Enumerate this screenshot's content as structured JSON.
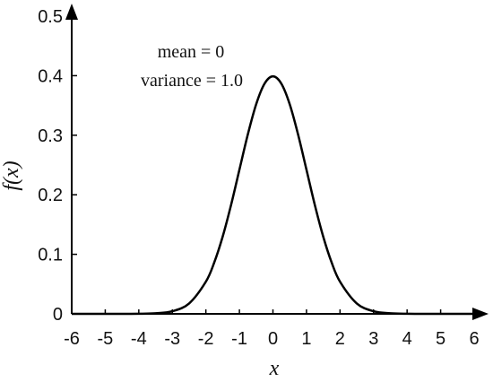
{
  "chart_data": {
    "type": "line",
    "title": "",
    "xlabel": "x",
    "ylabel": "f(x)",
    "xlim": [
      -6,
      6
    ],
    "ylim": [
      0,
      0.5
    ],
    "x_ticks": [
      -6,
      -5,
      -4,
      -3,
      -2,
      -1,
      0,
      1,
      2,
      3,
      4,
      5,
      6
    ],
    "y_ticks": [
      0,
      0.1,
      0.2,
      0.3,
      0.4,
      0.5
    ],
    "x_tick_labels": [
      "-6",
      "-5",
      "-4",
      "-3",
      "-2",
      "-1",
      "0",
      "1",
      "2",
      "3",
      "4",
      "5",
      "6"
    ],
    "y_tick_labels": [
      "0",
      "0.1",
      "0.2",
      "0.3",
      "0.4",
      "0.5"
    ],
    "grid": false,
    "annotations": [
      "mean = 0",
      "variance  = 1.0"
    ],
    "series": [
      {
        "color": "#000000",
        "x": [
          -6,
          -5.5,
          -5,
          -4.5,
          -4,
          -3.5,
          -3,
          -2.5,
          -2,
          -1.75,
          -1.5,
          -1.25,
          -1,
          -0.75,
          -0.5,
          -0.25,
          0,
          0.25,
          0.5,
          0.75,
          1,
          1.25,
          1.5,
          1.75,
          2,
          2.5,
          3,
          3.5,
          4,
          4.5,
          5,
          5.5,
          6
        ],
        "y": [
          0,
          0,
          0,
          0,
          0.0001,
          0.0009,
          0.0044,
          0.0175,
          0.054,
          0.0863,
          0.1295,
          0.1826,
          0.242,
          0.3011,
          0.3521,
          0.3867,
          0.3989,
          0.3867,
          0.3521,
          0.3011,
          0.242,
          0.1826,
          0.1295,
          0.0863,
          0.054,
          0.0175,
          0.0044,
          0.0009,
          0.0001,
          0,
          0,
          0,
          0
        ]
      }
    ]
  }
}
